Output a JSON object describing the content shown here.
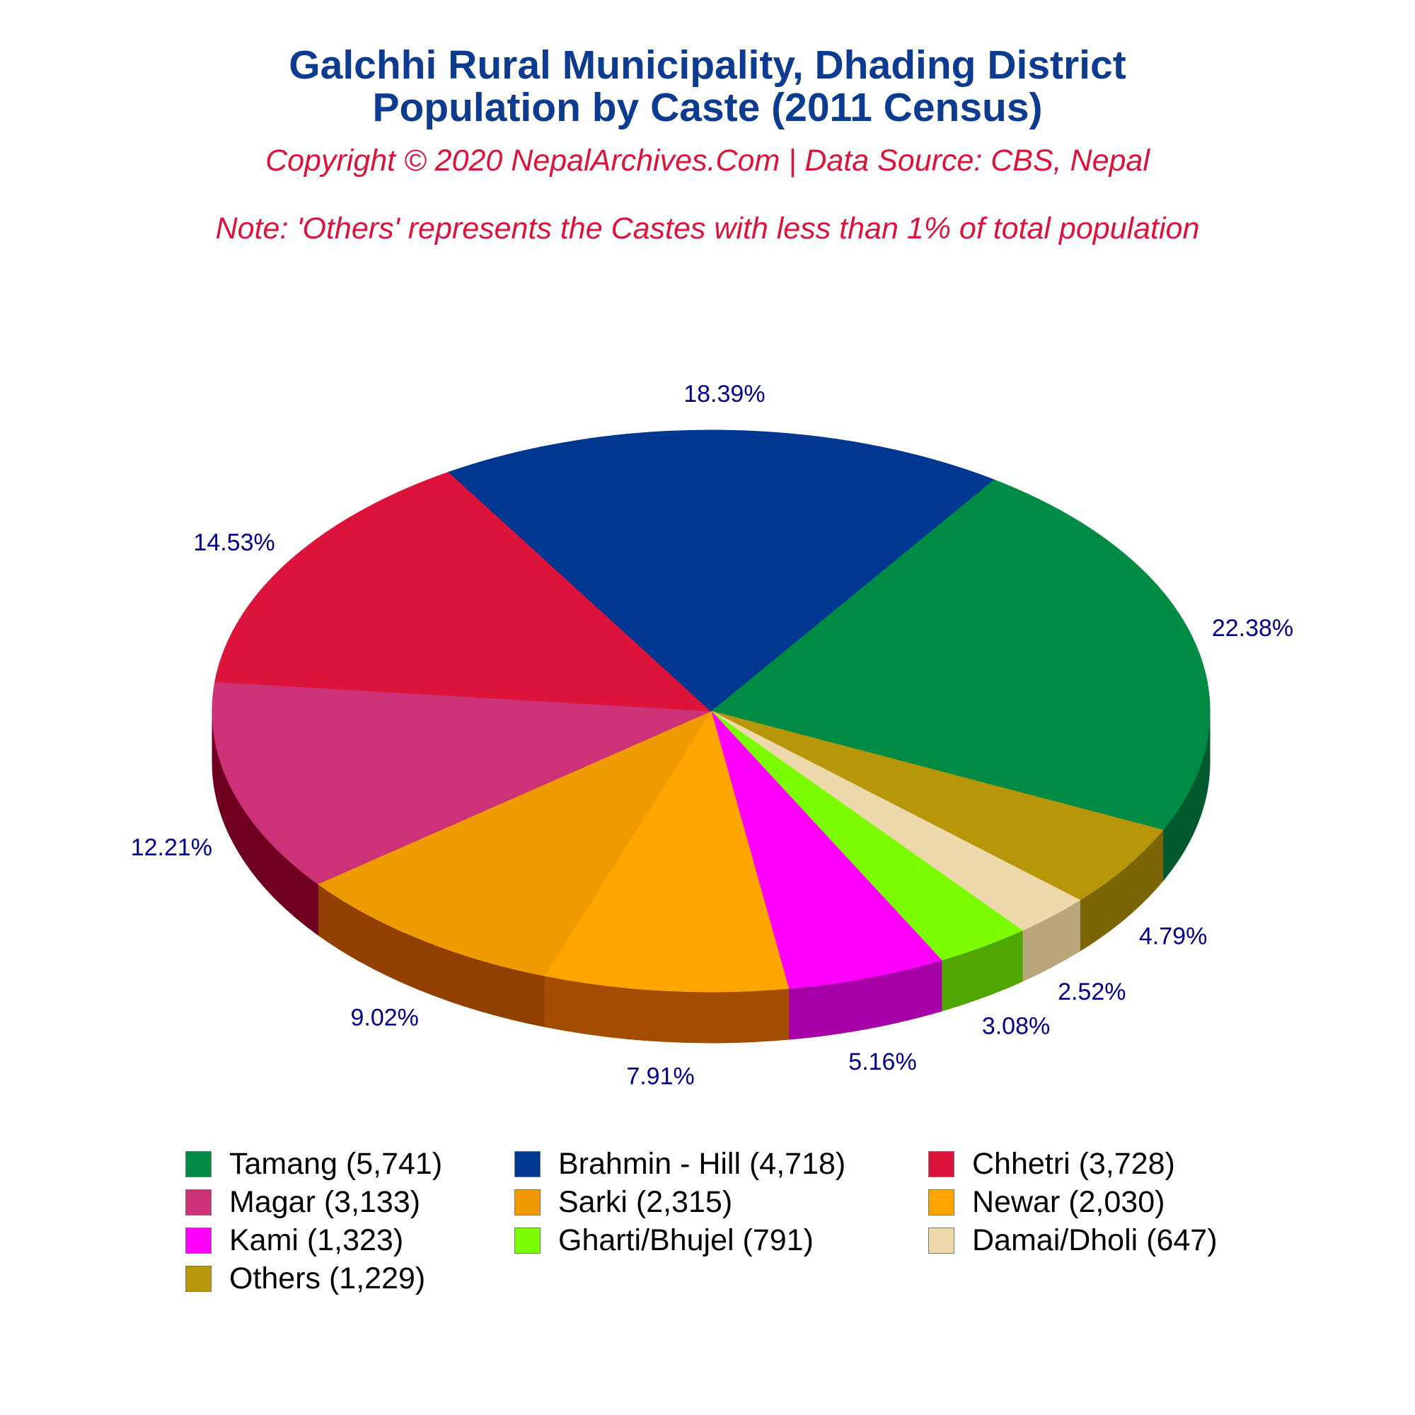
{
  "header": {
    "title_line1": "Galchhi Rural Municipality, Dhading District",
    "title_line2": "Population by Caste (2011 Census)",
    "copyright": "Copyright © 2020 NepalArchives.Com | Data Source: CBS, Nepal",
    "note": "Note: 'Others' represents the Castes with less than 1% of total population"
  },
  "chart_data": {
    "type": "pie",
    "style": "3d",
    "legend_position": "bottom",
    "slices": [
      {
        "name": "Tamang",
        "value": 5741,
        "percent_label": "22.38%",
        "legend_label": "Tamang (5,741)",
        "color": "#008b45",
        "side_color": "#005a2d"
      },
      {
        "name": "Others",
        "value": 1229,
        "percent_label": "4.79%",
        "legend_label": "Others (1,229)",
        "color": "#b8960a",
        "side_color": "#7c6506"
      },
      {
        "name": "Damai/Dholi",
        "value": 647,
        "percent_label": "2.52%",
        "legend_label": "Damai/Dholi (647)",
        "color": "#eed9ac",
        "side_color": "#b9a67c"
      },
      {
        "name": "Gharti/Bhujel",
        "value": 791,
        "percent_label": "3.08%",
        "legend_label": "Gharti/Bhujel (791)",
        "color": "#7cfc00",
        "side_color": "#4fa600"
      },
      {
        "name": "Kami",
        "value": 1323,
        "percent_label": "5.16%",
        "legend_label": "Kami (1,323)",
        "color": "#ff00ff",
        "side_color": "#a800a8"
      },
      {
        "name": "Newar",
        "value": 2030,
        "percent_label": "7.91%",
        "legend_label": "Newar (2,030)",
        "color": "#ffa500",
        "side_color": "#a44d00"
      },
      {
        "name": "Sarki",
        "value": 2315,
        "percent_label": "9.02%",
        "legend_label": "Sarki (2,315)",
        "color": "#ee9a00",
        "side_color": "#924000"
      },
      {
        "name": "Magar",
        "value": 3133,
        "percent_label": "12.21%",
        "legend_label": "Magar (3,133)",
        "color": "#cd3278",
        "side_color": "#700020"
      },
      {
        "name": "Chhetri",
        "value": 3728,
        "percent_label": "14.53%",
        "legend_label": "Chhetri (3,728)",
        "color": "#dc143c",
        "side_color": "#800000"
      },
      {
        "name": "Brahmin - Hill",
        "value": 4718,
        "percent_label": "18.39%",
        "legend_label": "Brahmin - Hill (4,718)",
        "color": "#003791",
        "side_color": "#001f52"
      }
    ],
    "legend_order": [
      "Tamang",
      "Brahmin - Hill",
      "Chhetri",
      "Magar",
      "Sarki",
      "Newar",
      "Kami",
      "Gharti/Bhujel",
      "Damai/Dholi",
      "Others"
    ],
    "label_color": "#00008b"
  }
}
